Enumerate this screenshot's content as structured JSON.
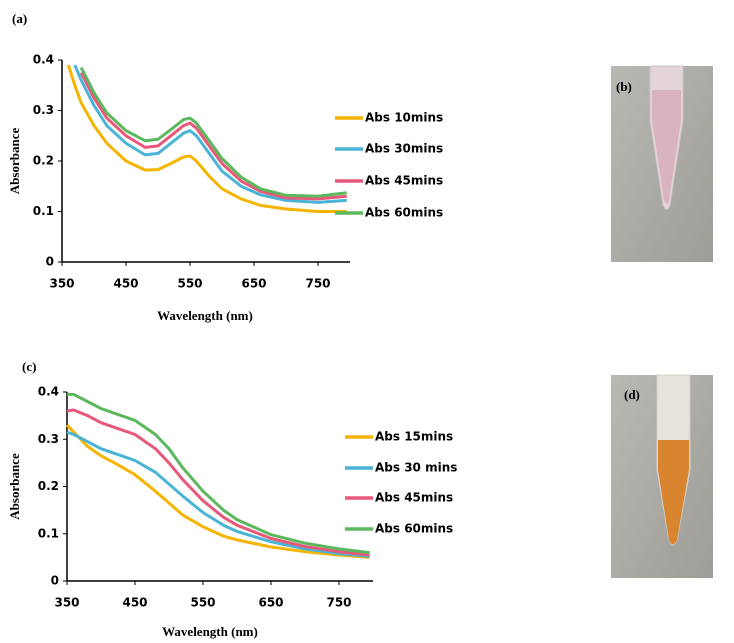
{
  "chart_data": [
    {
      "type": "line",
      "panel_label": "(a)",
      "x_label": "Wavelength (nm)",
      "y_label": "Absorbance",
      "x": [
        355,
        360,
        370,
        380,
        400,
        420,
        450,
        480,
        500,
        520,
        540,
        550,
        560,
        580,
        600,
        630,
        660,
        700,
        750,
        795
      ],
      "xlim": [
        350,
        800
      ],
      "ylim": [
        0,
        0.4
      ],
      "xticks": [
        350,
        450,
        550,
        650,
        750
      ],
      "yticks": [
        0,
        0.1,
        0.2,
        0.3,
        0.4
      ],
      "series": [
        {
          "name": "Abs 10mins",
          "color": "#f5b400",
          "values": [
            null,
            0.39,
            0.35,
            0.315,
            0.27,
            0.235,
            0.2,
            0.182,
            0.183,
            0.195,
            0.208,
            0.21,
            0.2,
            0.17,
            0.145,
            0.125,
            0.112,
            0.105,
            0.1,
            0.1
          ]
        },
        {
          "name": "Abs 30mins",
          "color": "#4ab4d6",
          "values": [
            null,
            null,
            0.39,
            0.36,
            0.31,
            0.27,
            0.235,
            0.212,
            0.215,
            0.235,
            0.255,
            0.26,
            0.25,
            0.215,
            0.18,
            0.15,
            0.133,
            0.122,
            0.118,
            0.122
          ]
        },
        {
          "name": "Abs 45mins",
          "color": "#e8587a",
          "values": [
            null,
            null,
            null,
            0.375,
            0.325,
            0.285,
            0.25,
            0.227,
            0.23,
            0.25,
            0.27,
            0.275,
            0.265,
            0.23,
            0.195,
            0.16,
            0.14,
            0.127,
            0.125,
            0.13
          ]
        },
        {
          "name": "Abs 60mins",
          "color": "#5cb85c",
          "values": [
            null,
            null,
            null,
            0.385,
            0.335,
            0.295,
            0.26,
            0.24,
            0.243,
            0.262,
            0.282,
            0.285,
            0.275,
            0.24,
            0.205,
            0.168,
            0.145,
            0.132,
            0.13,
            0.137
          ]
        }
      ]
    },
    {
      "type": "line",
      "panel_label": "(c)",
      "x_label": "Wavelength  (nm)",
      "y_label": "Absorbance",
      "x": [
        350,
        360,
        380,
        400,
        420,
        450,
        480,
        500,
        520,
        550,
        580,
        600,
        650,
        700,
        750,
        795
      ],
      "xlim": [
        350,
        800
      ],
      "ylim": [
        0,
        0.4
      ],
      "xticks": [
        350,
        450,
        550,
        650,
        750
      ],
      "yticks": [
        0,
        0.1,
        0.2,
        0.3,
        0.4
      ],
      "series": [
        {
          "name": "Abs 15mins",
          "color": "#f5b400",
          "values": [
            0.33,
            0.315,
            0.285,
            0.265,
            0.25,
            0.225,
            0.19,
            0.165,
            0.14,
            0.115,
            0.095,
            0.087,
            0.072,
            0.062,
            0.055,
            0.05
          ]
        },
        {
          "name": "Abs 30 mins",
          "color": "#4ab4d6",
          "values": [
            0.315,
            0.31,
            0.295,
            0.28,
            0.27,
            0.255,
            0.23,
            0.205,
            0.18,
            0.145,
            0.118,
            0.105,
            0.083,
            0.068,
            0.058,
            0.052
          ]
        },
        {
          "name": "Abs 45mins",
          "color": "#e8587a",
          "values": [
            0.36,
            0.362,
            0.35,
            0.335,
            0.325,
            0.31,
            0.28,
            0.25,
            0.215,
            0.17,
            0.135,
            0.118,
            0.09,
            0.073,
            0.062,
            0.055
          ]
        },
        {
          "name": "Abs 60mins",
          "color": "#5cb85c",
          "values": [
            0.395,
            0.395,
            0.38,
            0.365,
            0.355,
            0.34,
            0.31,
            0.28,
            0.24,
            0.19,
            0.15,
            0.13,
            0.098,
            0.08,
            0.068,
            0.06
          ]
        }
      ]
    }
  ],
  "photos": [
    {
      "label": "(b)"
    },
    {
      "label": "(d)"
    }
  ]
}
